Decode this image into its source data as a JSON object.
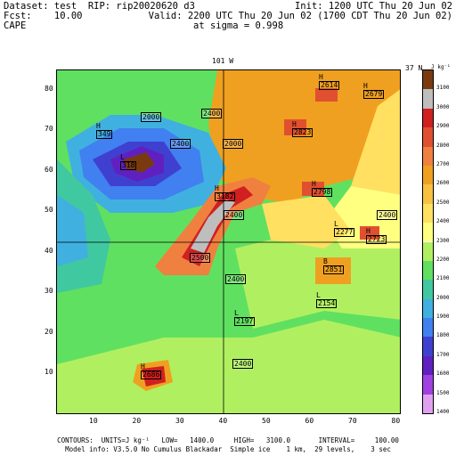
{
  "header": {
    "dataset": "Dataset: test  RIP: rip20020620 d3",
    "init": "Init: 1200 UTC Thu 20 Jun 02",
    "fcst": "Fcst:    10.00",
    "valid": "Valid: 2200 UTC Thu 20 Jun 02 (1700 CDT Thu 20 Jun 02)",
    "field": "CAPE",
    "sigma": "at sigma = 0.998"
  },
  "plot": {
    "top_label_left": "101 W",
    "top_label_right": "37 N",
    "units_label": "J kg⁻¹",
    "x_ticks": [
      "10",
      "20",
      "30",
      "40",
      "50",
      "60",
      "70",
      "80"
    ],
    "y_ticks": [
      "10",
      "20",
      "30",
      "40",
      "50",
      "60",
      "70",
      "80"
    ],
    "markers": [
      {
        "type": "H",
        "value": "2614"
      },
      {
        "type": "H",
        "value": "2679"
      },
      {
        "type": "H",
        "value": "349"
      },
      {
        "type": "H",
        "value": "2823"
      },
      {
        "type": "L",
        "value": "318"
      },
      {
        "type": "H",
        "value": "3182"
      },
      {
        "type": "H",
        "value": "2798"
      },
      {
        "type": "L",
        "value": "2277"
      },
      {
        "type": "H",
        "value": "2723"
      },
      {
        "type": "B",
        "value": "2851"
      },
      {
        "type": "L",
        "value": "2154"
      },
      {
        "type": "L",
        "value": "2197"
      },
      {
        "type": "H",
        "value": "2686"
      }
    ],
    "contour_labels": [
      "2000",
      "2400",
      "2400",
      "2000",
      "2400",
      "2500",
      "2400",
      "2400",
      "2400"
    ]
  },
  "legend": {
    "levels": [
      "3100",
      "3000",
      "2900",
      "2800",
      "2700",
      "2600",
      "2500",
      "2400",
      "2300",
      "2200",
      "2100",
      "2000",
      "1900",
      "1800",
      "1700",
      "1600",
      "1500",
      "1400"
    ],
    "colors": [
      "#7a3a10",
      "#bebebe",
      "#d02020",
      "#e05030",
      "#f08040",
      "#f0a020",
      "#f8c040",
      "#ffe060",
      "#ffff80",
      "#b0f060",
      "#60e060",
      "#40c8a0",
      "#40b0e0",
      "#4080f0",
      "#4040d0",
      "#6020c0",
      "#a040e0",
      "#e0a0f0"
    ]
  },
  "footer": {
    "line1": "CONTOURS:  UNITS=J kg⁻¹   LOW=   1400.0     HIGH=   3100.0       INTERVAL=     100.00",
    "line2": "Model info: V3.5.0 No Cumulus Blackadar  Simple ice    1 km,  29 levels,    3 sec"
  }
}
